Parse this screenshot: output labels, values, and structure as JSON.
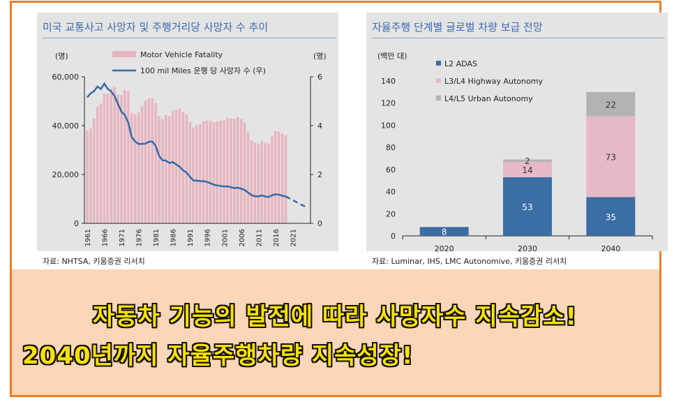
{
  "left_panel": {
    "title": "미국 교통사고 사망자 및 주행거리당 사망자 수 추이",
    "source": "자료: NHTSA, 키움증권 리서치"
  },
  "right_panel": {
    "title": "자율주행 단계별 글로벌 차량 보급 전망",
    "source": "자료: Luminar, IHS, LMC Autonomive, 키움증권 리서치"
  },
  "headline": {
    "line1": "자동차 기능의 발전에 따라 사망자수 지속감소!",
    "line2": "2040년까지 자율주행차량 지속성장!"
  },
  "colors": {
    "frame": "#ee7d22",
    "bottom_bg": "#fbd6b8",
    "headline_text": "#ffe100",
    "title_text": "#3b68b0",
    "fatality_bar": "#e8b4bf",
    "rate_line": "#2f6aa8",
    "l2": "#3a6ea5",
    "l3": "#e7b9c8",
    "l45": "#b3b3b3"
  },
  "chart_data": [
    {
      "type": "bar+line",
      "title": "미국 교통사고 사망자 및 주행거리당 사망자 수 추이",
      "y_left_unit": "(명)",
      "y_right_unit": "(명)",
      "y_left_ticks": [
        "60,000",
        "40,000",
        "20,000",
        "0"
      ],
      "y_right_ticks": [
        "6",
        "4",
        "2",
        "0"
      ],
      "ylim_left": [
        0,
        60000
      ],
      "ylim_right": [
        0,
        6
      ],
      "x_tick_labels": [
        "1961",
        "1966",
        "1971",
        "1976",
        "1981",
        "1986",
        "1991",
        "1996",
        "2001",
        "2006",
        "2011",
        "2016",
        "2021"
      ],
      "legend_position": "top",
      "series": [
        {
          "name": "Motor Vehicle Fatality",
          "type": "bar",
          "x": [
            1961,
            1962,
            1963,
            1964,
            1965,
            1966,
            1967,
            1968,
            1969,
            1970,
            1971,
            1972,
            1973,
            1974,
            1975,
            1976,
            1977,
            1978,
            1979,
            1980,
            1981,
            1982,
            1983,
            1984,
            1985,
            1986,
            1987,
            1988,
            1989,
            1990,
            1991,
            1992,
            1993,
            1994,
            1995,
            1996,
            1997,
            1998,
            1999,
            2000,
            2001,
            2002,
            2003,
            2004,
            2005,
            2006,
            2007,
            2008,
            2009,
            2010,
            2011,
            2012,
            2013,
            2014,
            2015,
            2016,
            2017,
            2018,
            2019
          ],
          "values": [
            38000,
            39000,
            43000,
            47700,
            49100,
            53000,
            52900,
            55200,
            55800,
            52600,
            52500,
            54600,
            54100,
            45200,
            44500,
            45500,
            47900,
            50300,
            51100,
            51100,
            49300,
            43900,
            42600,
            44300,
            43800,
            46100,
            46400,
            47100,
            45600,
            44600,
            41500,
            39300,
            40200,
            40700,
            41800,
            42100,
            42000,
            41500,
            41700,
            42000,
            42200,
            43000,
            42900,
            42800,
            43500,
            42700,
            41300,
            37400,
            33900,
            32900,
            32500,
            33800,
            32900,
            32700,
            35500,
            37800,
            37500,
            36800,
            36100
          ]
        },
        {
          "name": "100 mil Miles 운행 당 사망자 수 (우)",
          "type": "line",
          "x": [
            1961,
            1962,
            1963,
            1964,
            1965,
            1966,
            1967,
            1968,
            1969,
            1970,
            1971,
            1972,
            1973,
            1974,
            1975,
            1976,
            1977,
            1978,
            1979,
            1980,
            1981,
            1982,
            1983,
            1984,
            1985,
            1986,
            1987,
            1988,
            1989,
            1990,
            1991,
            1992,
            1993,
            1994,
            1995,
            1996,
            1997,
            1998,
            1999,
            2000,
            2001,
            2002,
            2003,
            2004,
            2005,
            2006,
            2007,
            2008,
            2009,
            2010,
            2011,
            2012,
            2013,
            2014,
            2015,
            2016,
            2017,
            2018,
            2019
          ],
          "values": [
            5.16,
            5.32,
            5.41,
            5.6,
            5.5,
            5.72,
            5.5,
            5.4,
            5.21,
            4.88,
            4.57,
            4.43,
            4.12,
            3.53,
            3.35,
            3.25,
            3.25,
            3.26,
            3.34,
            3.35,
            3.17,
            2.76,
            2.58,
            2.57,
            2.47,
            2.51,
            2.41,
            2.32,
            2.17,
            2.08,
            1.91,
            1.75,
            1.75,
            1.73,
            1.73,
            1.69,
            1.64,
            1.58,
            1.55,
            1.53,
            1.51,
            1.51,
            1.48,
            1.44,
            1.46,
            1.42,
            1.36,
            1.26,
            1.15,
            1.11,
            1.1,
            1.14,
            1.1,
            1.08,
            1.15,
            1.19,
            1.17,
            1.13,
            1.1
          ]
        },
        {
          "name": "projection",
          "type": "line-dashed",
          "x": [
            2019,
            2025
          ],
          "values": [
            1.1,
            0.66
          ]
        }
      ]
    },
    {
      "type": "bar",
      "stacked": true,
      "title": "자율주행 단계별 글로벌 차량 보급 전망",
      "y_unit": "(백만 대)",
      "categories": [
        "2020",
        "2030",
        "2040"
      ],
      "ylim": [
        0,
        140
      ],
      "y_ticks": [
        0,
        20,
        40,
        60,
        80,
        100,
        120,
        140
      ],
      "legend_position": "top-left",
      "series": [
        {
          "name": "L2 ADAS",
          "values": [
            8,
            53,
            35
          ]
        },
        {
          "name": "L3/L4 Highway Autonomy",
          "values": [
            0,
            14,
            73
          ]
        },
        {
          "name": "L4/L5 Urban Autonomy",
          "values": [
            0,
            2,
            22
          ]
        }
      ],
      "data_labels": [
        [
          "8",
          "",
          ""
        ],
        [
          "53",
          "14",
          "2"
        ],
        [
          "35",
          "73",
          "22"
        ]
      ]
    }
  ]
}
